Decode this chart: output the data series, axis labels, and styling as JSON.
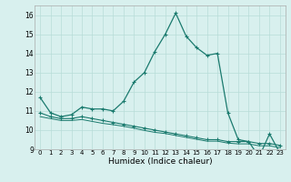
{
  "xlabel": "Humidex (Indice chaleur)",
  "x": [
    0,
    1,
    2,
    3,
    4,
    5,
    6,
    7,
    8,
    9,
    10,
    11,
    12,
    13,
    14,
    15,
    16,
    17,
    18,
    19,
    20,
    21,
    22,
    23
  ],
  "line1": [
    11.7,
    10.9,
    10.7,
    10.8,
    11.2,
    11.1,
    11.1,
    11.0,
    11.5,
    12.5,
    13.0,
    14.1,
    15.0,
    16.1,
    14.9,
    14.3,
    13.9,
    14.0,
    10.9,
    9.5,
    9.4,
    8.6,
    9.8,
    8.8
  ],
  "line2": [
    10.9,
    10.7,
    10.6,
    10.6,
    10.7,
    10.6,
    10.5,
    10.4,
    10.3,
    10.2,
    10.1,
    10.0,
    9.9,
    9.8,
    9.7,
    9.6,
    9.5,
    9.5,
    9.4,
    9.4,
    9.4,
    9.3,
    9.3,
    9.2
  ],
  "line3": [
    10.7,
    10.6,
    10.5,
    10.5,
    10.55,
    10.45,
    10.35,
    10.28,
    10.2,
    10.1,
    9.98,
    9.88,
    9.82,
    9.72,
    9.62,
    9.52,
    9.42,
    9.42,
    9.32,
    9.28,
    9.28,
    9.18,
    9.18,
    9.08
  ],
  "line_color": "#1a7a6e",
  "bg_color": "#d8f0ee",
  "grid_color": "#b8dcd8",
  "ylim": [
    9.0,
    16.5
  ],
  "xlim": [
    -0.5,
    23.5
  ],
  "yticks": [
    9,
    10,
    11,
    12,
    13,
    14,
    15,
    16
  ],
  "xtick_fontsize": 5.0,
  "ytick_fontsize": 5.5,
  "xlabel_fontsize": 6.5
}
